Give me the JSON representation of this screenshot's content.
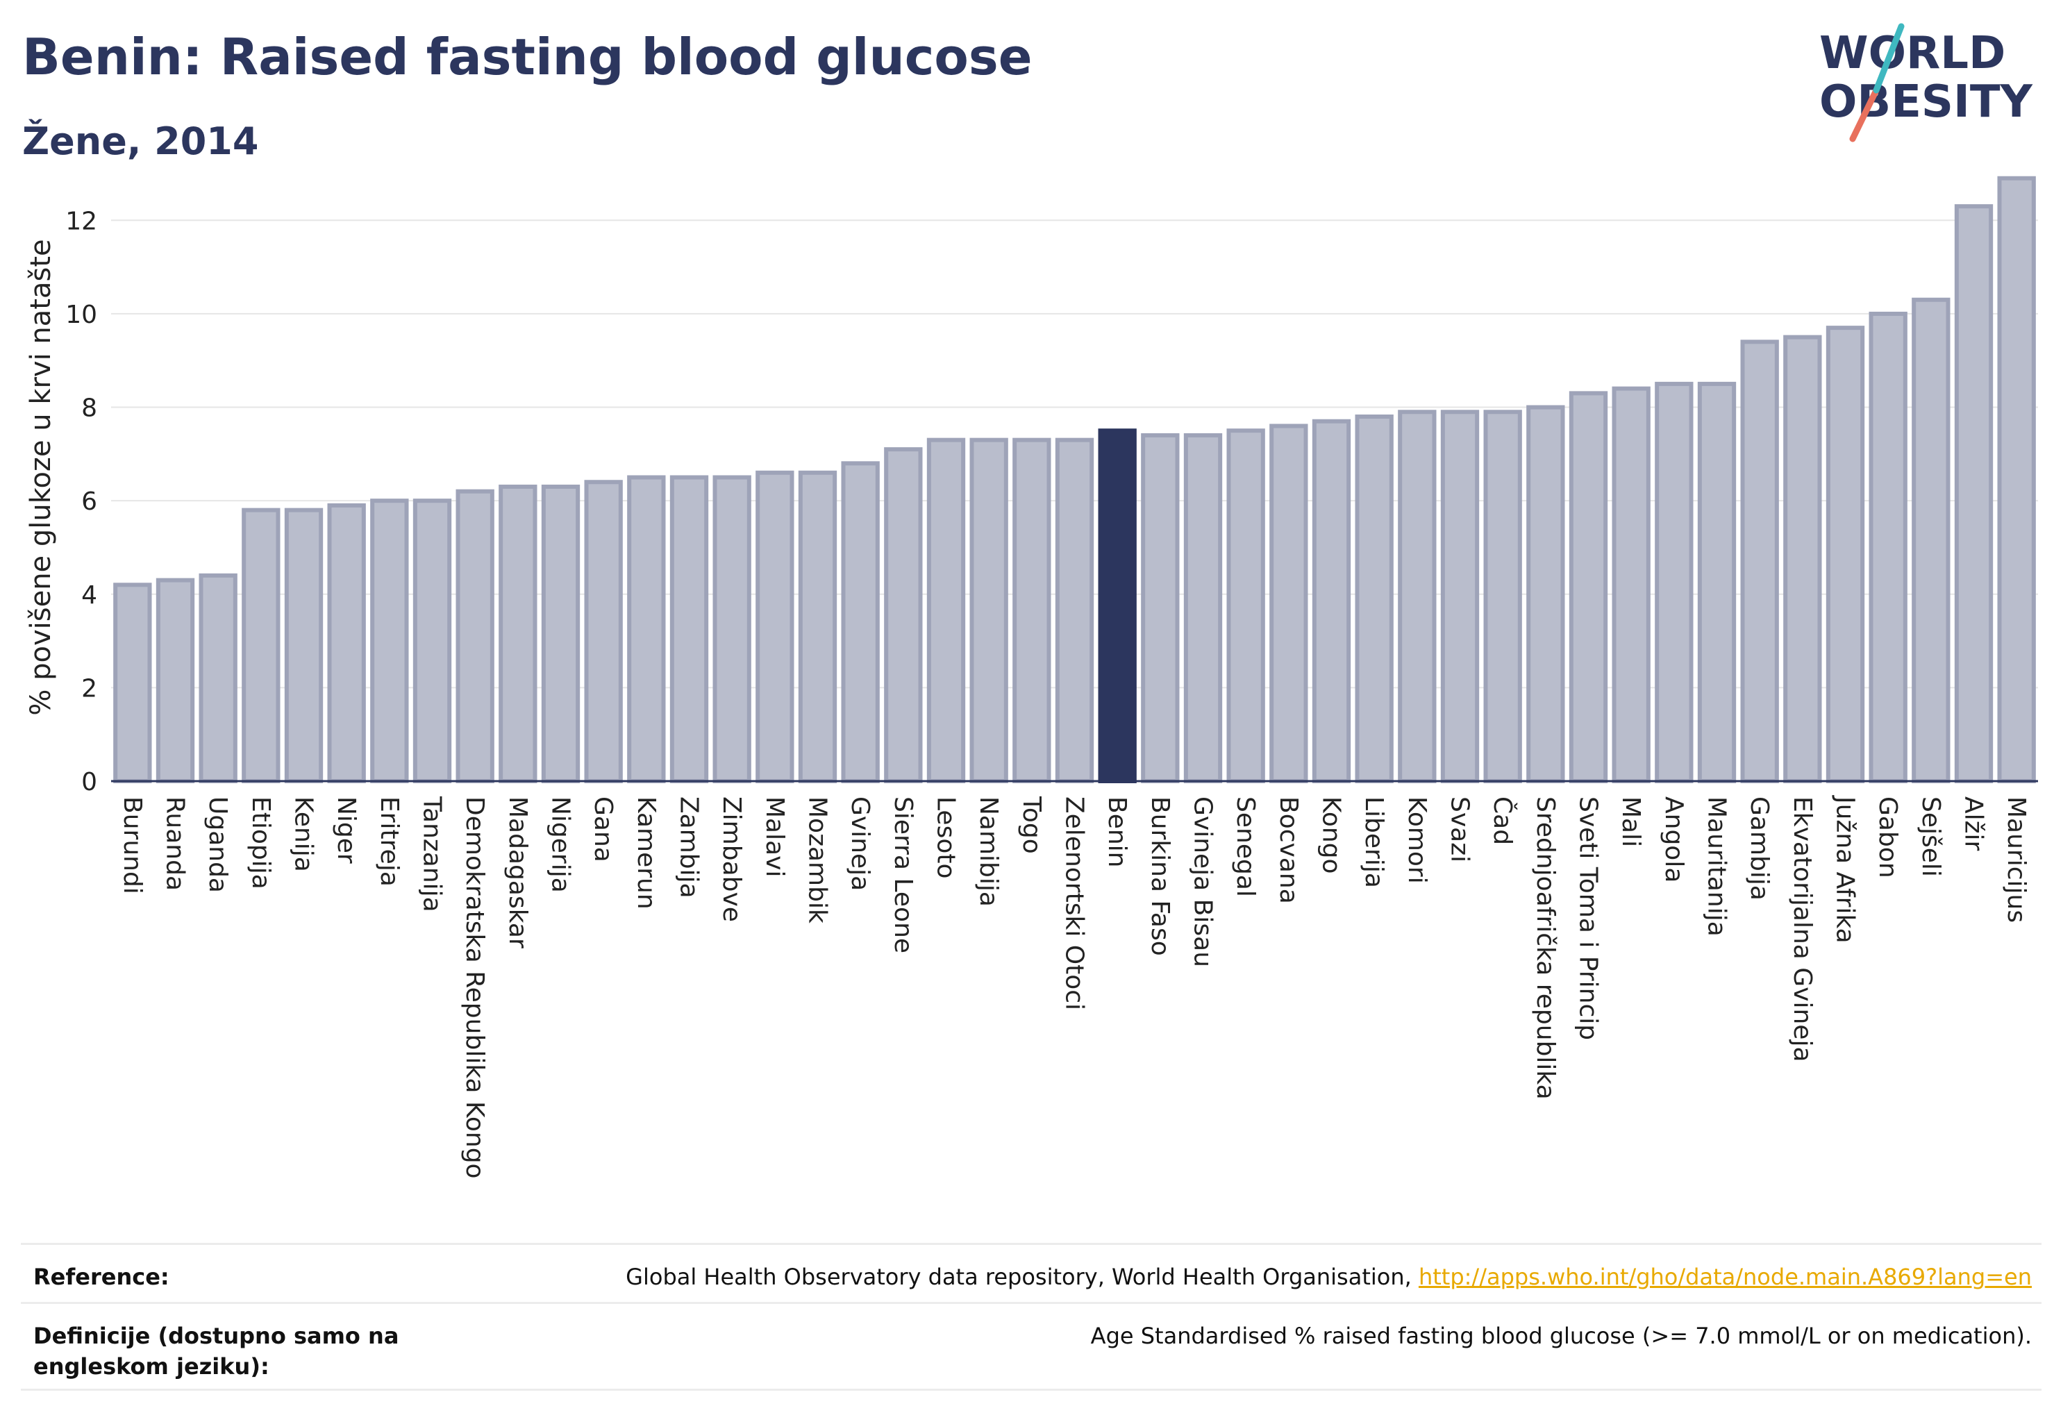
{
  "header": {
    "title": "Benin: Raised fasting blood glucose",
    "subtitle": "Žene, 2014"
  },
  "logo": {
    "line1": "WORLD",
    "line2": "OBESITY"
  },
  "chart_data": {
    "type": "bar",
    "ylabel": "% povišene glukoze u krvi natašte",
    "ylim": [
      0,
      13
    ],
    "yticks": [
      0,
      2,
      4,
      6,
      8,
      10,
      12
    ],
    "grid": true,
    "highlight": "Benin",
    "colors": {
      "bar": "#b9bdcc",
      "bar_edge": "#9ea3b8",
      "highlight": "#2c365e"
    },
    "categories": [
      "Burundi",
      "Ruanda",
      "Uganda",
      "Etiopija",
      "Kenija",
      "Niger",
      "Eritreja",
      "Tanzanija",
      "Demokratska Republika Kongo",
      "Madagaskar",
      "Nigerija",
      "Gana",
      "Kamerun",
      "Zambija",
      "Zimbabve",
      "Malavi",
      "Mozambik",
      "Gvineja",
      "Sierra Leone",
      "Lesoto",
      "Namibija",
      "Togo",
      "Zelenortski Otoci",
      "Benin",
      "Burkina Faso",
      "Gvineja Bisau",
      "Senegal",
      "Bocvana",
      "Kongo",
      "Liberija",
      "Komori",
      "Svazi",
      "Čad",
      "Srednjoafrička republika",
      "Sveti Toma i Princip",
      "Mali",
      "Angola",
      "Mauritanija",
      "Gambija",
      "Ekvatorijalna Gvineja",
      "Južna Afrika",
      "Gabon",
      "Sejšeli",
      "Alžir",
      "Mauricijus"
    ],
    "values": [
      4.2,
      4.3,
      4.4,
      5.8,
      5.8,
      5.9,
      6.0,
      6.0,
      6.2,
      6.3,
      6.3,
      6.4,
      6.5,
      6.5,
      6.5,
      6.6,
      6.6,
      6.8,
      7.1,
      7.3,
      7.3,
      7.3,
      7.3,
      7.5,
      7.4,
      7.4,
      7.5,
      7.6,
      7.7,
      7.8,
      7.9,
      7.9,
      7.9,
      8.0,
      8.3,
      8.4,
      8.5,
      8.5,
      9.4,
      9.5,
      9.7,
      10.0,
      10.3,
      12.3,
      12.9
    ]
  },
  "footer": {
    "reference_label": "Reference:",
    "reference_text": "Global Health Observatory data repository, World Health Organisation, ",
    "reference_link": "http://apps.who.int/gho/data/node.main.A869?lang=en",
    "definition_label": "Definicije (dostupno samo na engleskom jeziku):",
    "definition_text": "Age Standardised % raised fasting blood glucose (>= 7.0 mmol/L or on medication)."
  }
}
